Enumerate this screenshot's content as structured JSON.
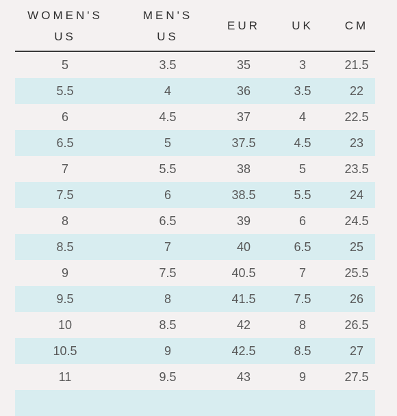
{
  "headers": [
    {
      "line1": "WOMEN'S",
      "line2": "US"
    },
    {
      "line1": "MEN'S",
      "line2": "US"
    },
    {
      "line1": "EUR",
      "line2": ""
    },
    {
      "line1": "UK",
      "line2": ""
    },
    {
      "line1": "CM",
      "line2": ""
    }
  ],
  "rows": [
    [
      "5",
      "3.5",
      "35",
      "3",
      "21.5"
    ],
    [
      "5.5",
      "4",
      "36",
      "3.5",
      "22"
    ],
    [
      "6",
      "4.5",
      "37",
      "4",
      "22.5"
    ],
    [
      "6.5",
      "5",
      "37.5",
      "4.5",
      "23"
    ],
    [
      "7",
      "5.5",
      "38",
      "5",
      "23.5"
    ],
    [
      "7.5",
      "6",
      "38.5",
      "5.5",
      "24"
    ],
    [
      "8",
      "6.5",
      "39",
      "6",
      "24.5"
    ],
    [
      "8.5",
      "7",
      "40",
      "6.5",
      "25"
    ],
    [
      "9",
      "7.5",
      "40.5",
      "7",
      "25.5"
    ],
    [
      "9.5",
      "8",
      "41.5",
      "7.5",
      "26"
    ],
    [
      "10",
      "8.5",
      "42",
      "8",
      "26.5"
    ],
    [
      "10.5",
      "9",
      "42.5",
      "8.5",
      "27"
    ],
    [
      "11",
      "9.5",
      "43",
      "9",
      "27.5"
    ],
    [
      "",
      "",
      "",
      "",
      ""
    ]
  ],
  "colors": {
    "background": "#f4f1f1",
    "stripe": "#d8edf0",
    "rule": "#3a3a3a",
    "text": "#585858"
  }
}
